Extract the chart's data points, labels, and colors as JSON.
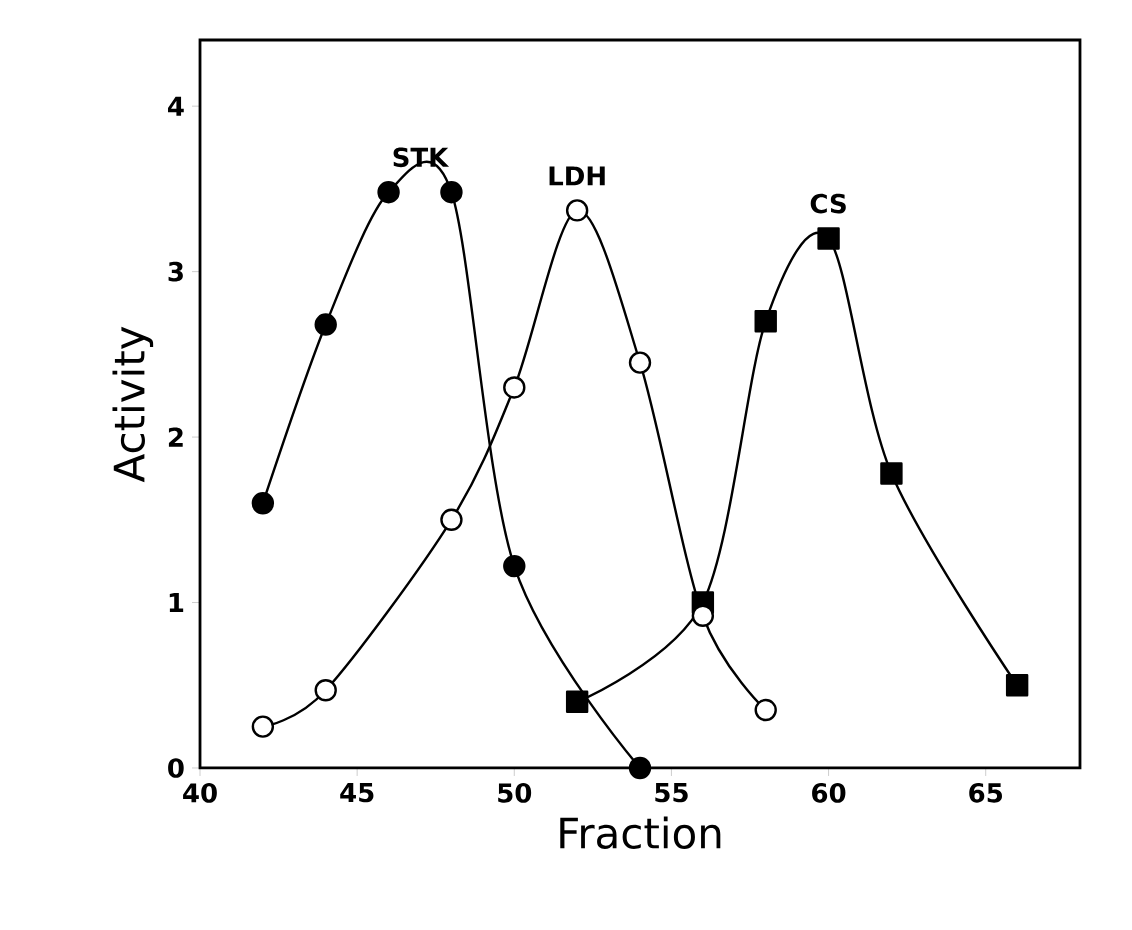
{
  "chart_data": {
    "type": "line",
    "xlabel": "Fraction",
    "ylabel": "Activity",
    "xlim": [
      40,
      68
    ],
    "ylim": [
      0,
      4.4
    ],
    "xticks": [
      40,
      45,
      50,
      55,
      60,
      65
    ],
    "yticks": [
      0,
      1,
      2,
      3,
      4
    ],
    "grid": false,
    "legend": false,
    "line_style": "solid",
    "series": [
      {
        "name": "STK",
        "color": "#000000",
        "marker": "circle",
        "x": [
          42,
          44,
          46,
          48,
          50,
          54
        ],
        "values": [
          1.6,
          2.68,
          3.48,
          3.48,
          1.22,
          0.0
        ]
      },
      {
        "name": "LDH",
        "color": "#000000",
        "marker": "open circle",
        "x": [
          42,
          44,
          48,
          50,
          52,
          54,
          56,
          58
        ],
        "values": [
          0.25,
          0.47,
          1.5,
          2.3,
          3.37,
          2.45,
          0.92,
          0.35
        ]
      },
      {
        "name": "CS",
        "color": "#000000",
        "marker": "square",
        "x": [
          52,
          56,
          58,
          60,
          62,
          66
        ],
        "values": [
          0.4,
          1.0,
          2.7,
          3.2,
          1.78,
          0.5
        ]
      }
    ]
  }
}
